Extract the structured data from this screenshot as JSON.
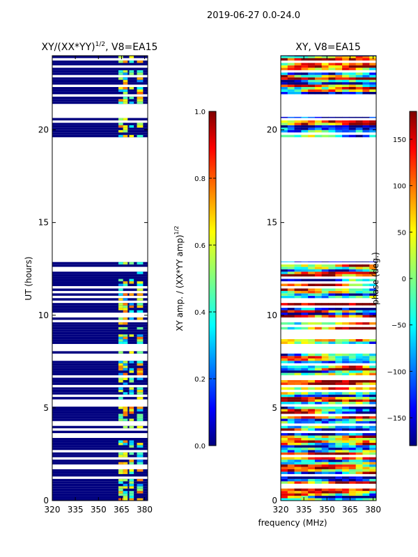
{
  "suptitle": "2019-06-27 0.0-24.0",
  "xlabel_shared": "frequency (MHz)",
  "colors": {
    "jet": [
      "#00007f",
      "#0000ff",
      "#0080ff",
      "#00ffff",
      "#80ff80",
      "#ffff00",
      "#ff8000",
      "#ff0000",
      "#7f0000"
    ]
  },
  "chart_data": [
    {
      "type": "heatmap",
      "title": "XY/(XX*YY)",
      "title_exp": "1/2",
      "title_suffix": ", V8=EA15",
      "xlabel": "",
      "ylabel": "UT (hours)",
      "xlim": [
        320,
        382
      ],
      "ylim": [
        0,
        24
      ],
      "xticks": [
        320,
        335,
        350,
        365,
        380
      ],
      "yticks": [
        0,
        5,
        10,
        15,
        20
      ],
      "data_row_ranges": [
        [
          0,
          12.9
        ],
        [
          19.6,
          20.7
        ],
        [
          21.4,
          24
        ]
      ],
      "colorbar": {
        "label": "XY amp. / (XX*YY amp)",
        "label_exp": "1/2",
        "range": [
          0.0,
          1.0
        ],
        "ticks": [
          "0.0",
          "0.2",
          "0.4",
          "0.6",
          "0.8",
          "1.0"
        ]
      }
    },
    {
      "type": "heatmap",
      "title": "XY, V8=EA15",
      "xlabel": "frequency (MHz)",
      "ylabel": "",
      "xlim": [
        320,
        382
      ],
      "ylim": [
        0,
        24
      ],
      "xticks": [
        320,
        335,
        350,
        365,
        380
      ],
      "yticks": [
        0,
        5,
        10,
        15,
        20
      ],
      "data_row_ranges": [
        [
          0,
          12.9
        ],
        [
          19.6,
          20.7
        ],
        [
          21.4,
          24
        ]
      ],
      "colorbar": {
        "label": "phase (deg.)",
        "range": [
          -180,
          180
        ],
        "ticks": [
          "150",
          "100",
          "50",
          "0",
          "−50",
          "−100",
          "−150"
        ],
        "tick_values": [
          150,
          100,
          50,
          0,
          -50,
          -100,
          -150
        ]
      }
    }
  ]
}
